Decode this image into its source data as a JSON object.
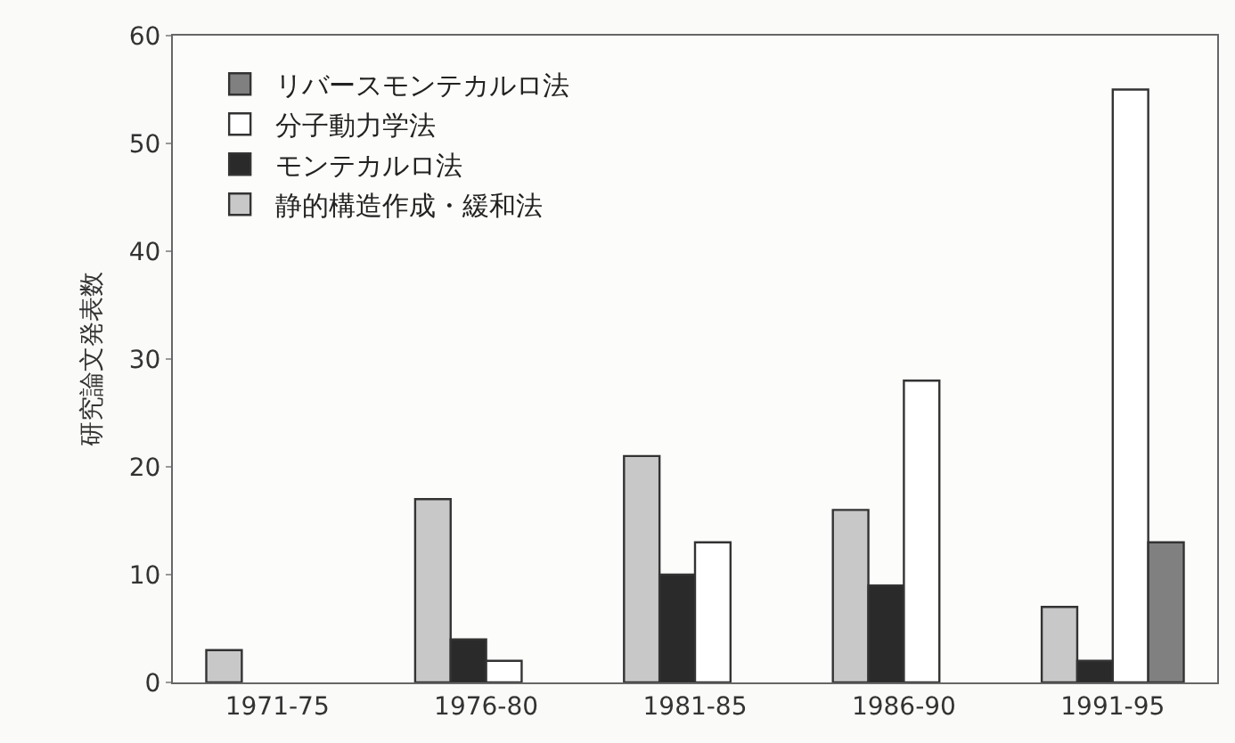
{
  "chart_data": {
    "type": "bar",
    "ylabel": "研究論文発表数",
    "categories": [
      "1971-75",
      "1976-80",
      "1981-85",
      "1986-90",
      "1991-95"
    ],
    "series": [
      {
        "name": "静的構造作成・緩和法",
        "color": "#c8c8c8",
        "values": [
          3,
          17,
          21,
          16,
          7
        ]
      },
      {
        "name": "モンテカルロ法",
        "color": "#2a2a2a",
        "values": [
          null,
          4,
          10,
          9,
          2
        ]
      },
      {
        "name": "分子動力学法",
        "color": "#ffffff",
        "values": [
          null,
          2,
          13,
          28,
          55
        ]
      },
      {
        "name": "リバースモンテカルロ法",
        "color": "#808080",
        "values": [
          null,
          null,
          null,
          null,
          13
        ]
      }
    ],
    "ylim": [
      0,
      60
    ],
    "yticks": [
      0,
      10,
      20,
      30,
      40,
      50,
      60
    ],
    "grid": false,
    "legend": "top left"
  }
}
